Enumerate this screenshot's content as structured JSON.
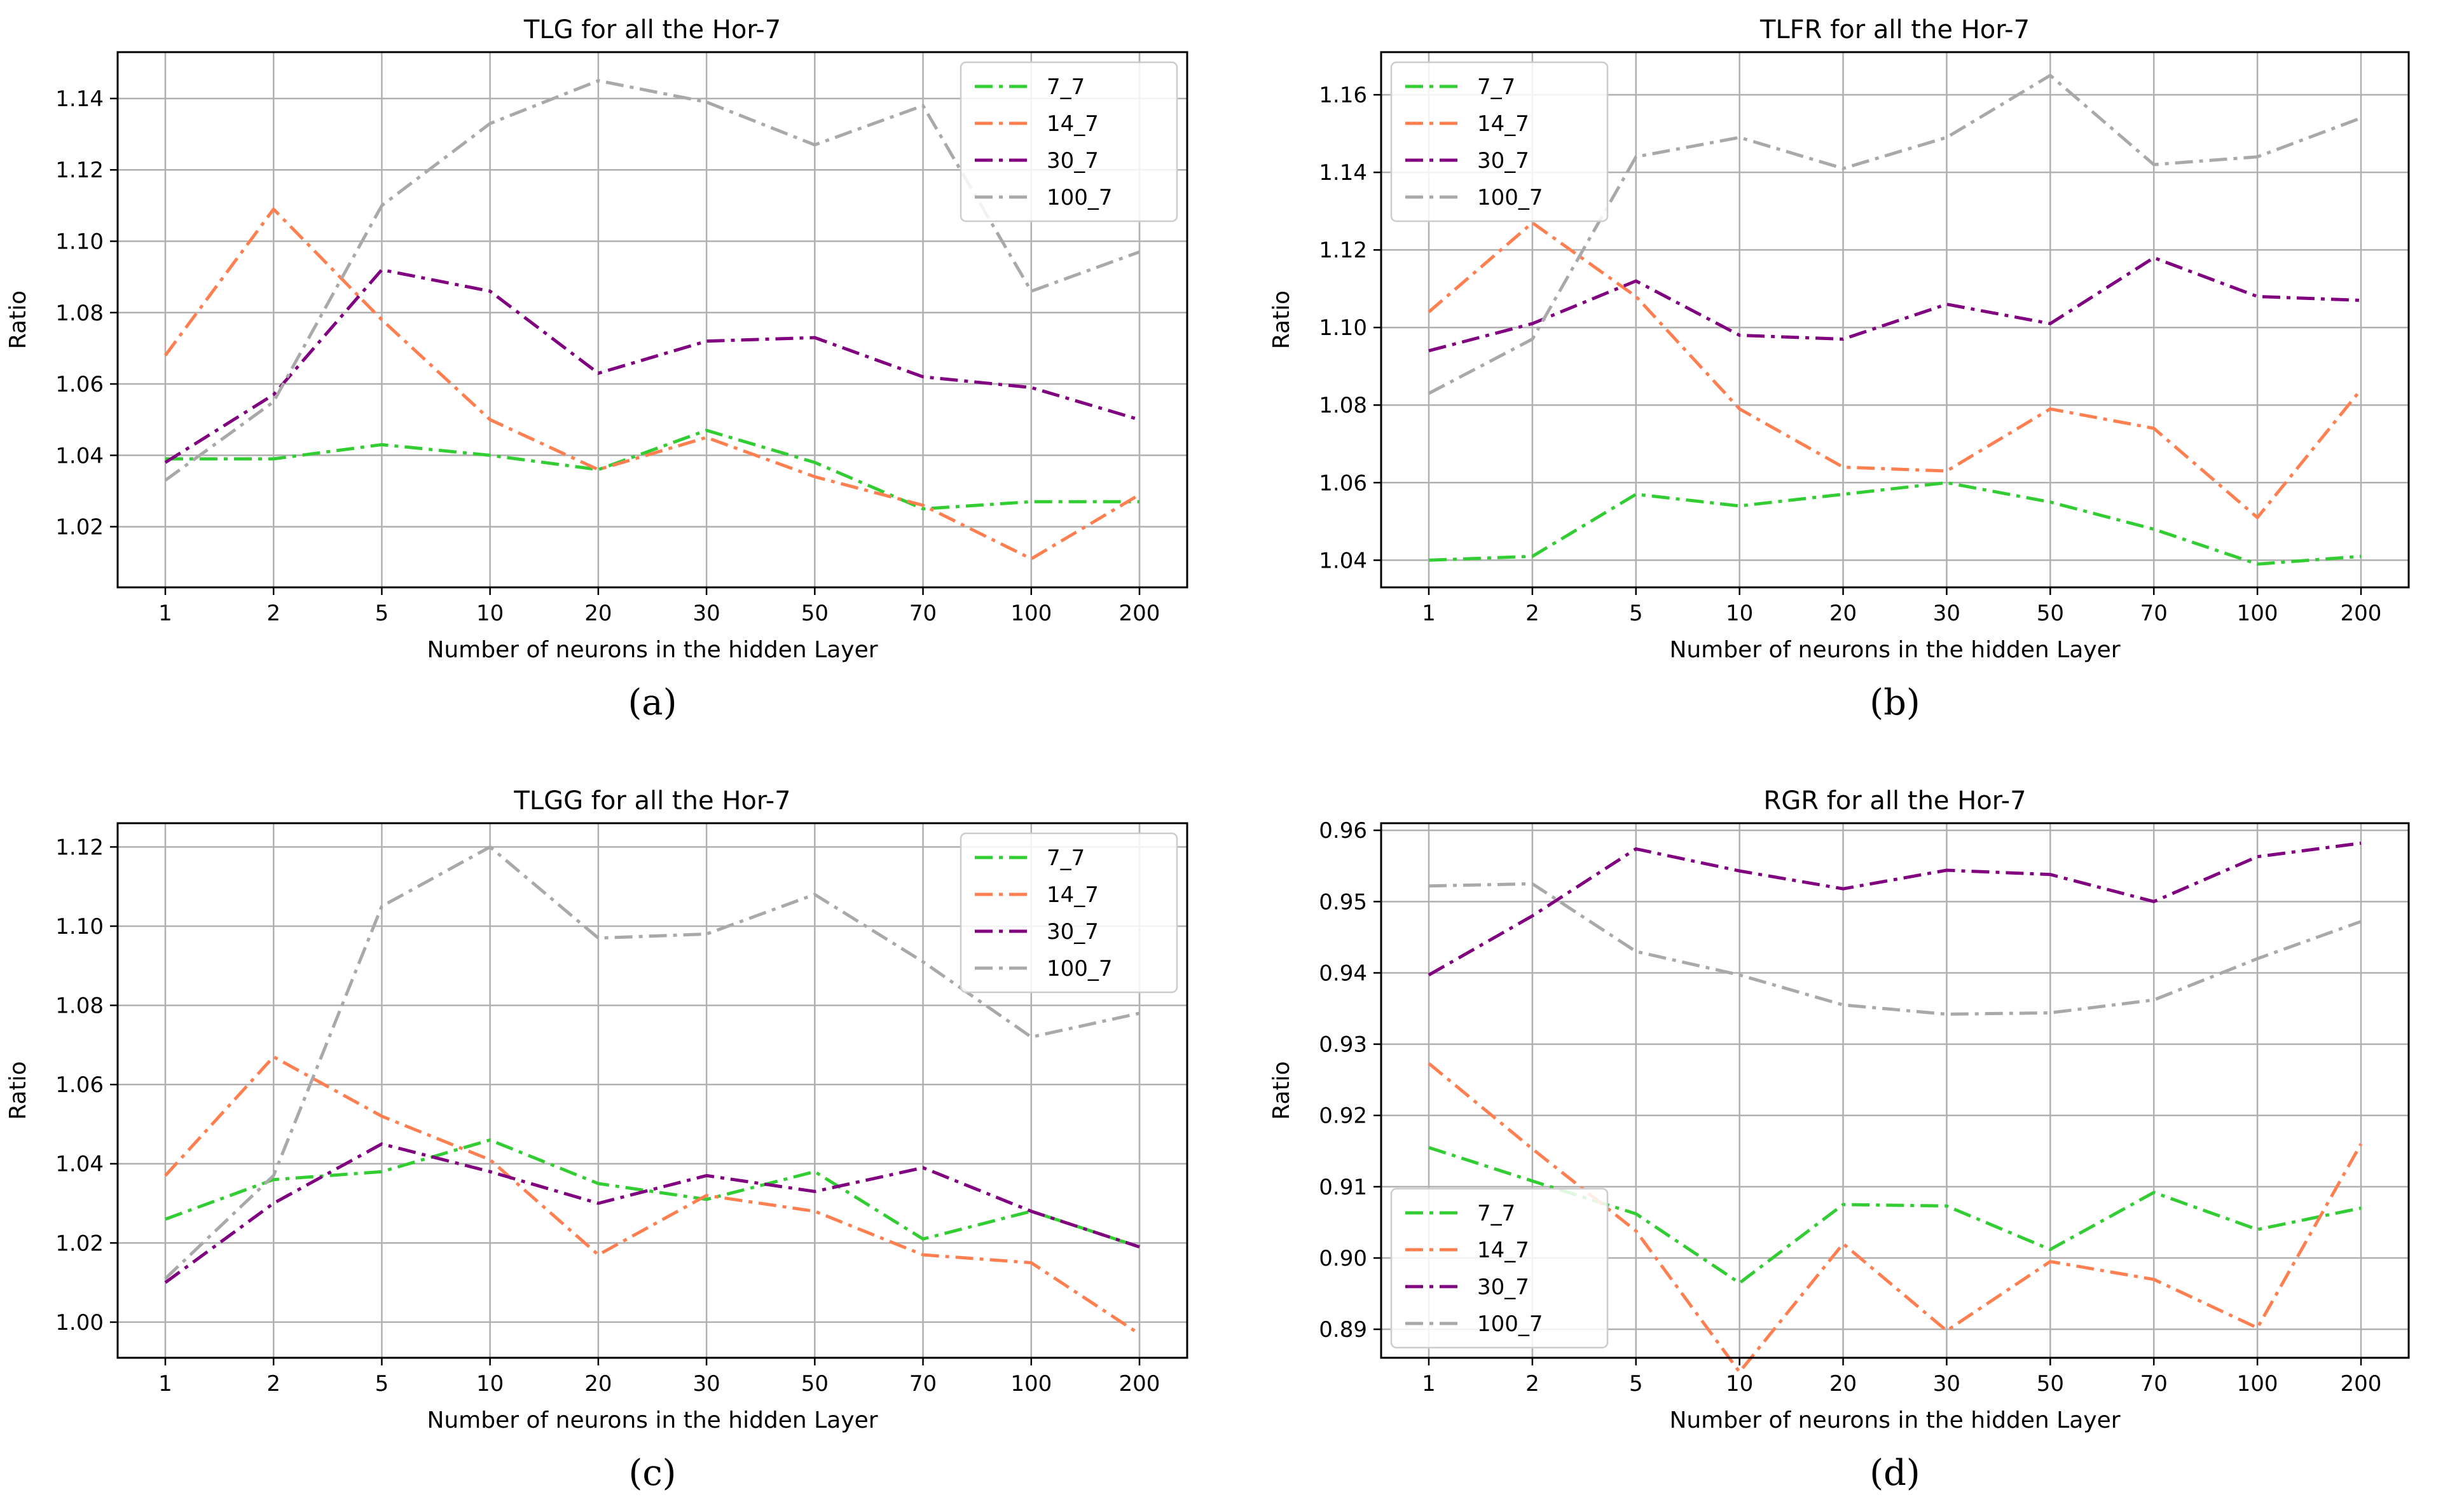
{
  "chart_data": [
    {
      "type": "line",
      "title": "TLG for all the Hor-7",
      "caption": "(a)",
      "xlabel": "Number of neurons in the hidden Layer",
      "ylabel": "Ratio",
      "categories": [
        "1",
        "2",
        "5",
        "10",
        "20",
        "30",
        "50",
        "70",
        "100",
        "200"
      ],
      "ylim": [
        1.003,
        1.153
      ],
      "yticks": [
        "1.02",
        "1.04",
        "1.06",
        "1.08",
        "1.10",
        "1.12",
        "1.14"
      ],
      "legend_position": "top-right",
      "grid": true,
      "series": [
        {
          "name": "7_7",
          "color": "#32cd32",
          "values": [
            1.039,
            1.039,
            1.043,
            1.04,
            1.036,
            1.047,
            1.038,
            1.025,
            1.027,
            1.027
          ]
        },
        {
          "name": "14_7",
          "color": "#ff7f50",
          "values": [
            1.068,
            1.109,
            1.078,
            1.05,
            1.036,
            1.045,
            1.034,
            1.026,
            1.011,
            1.029
          ]
        },
        {
          "name": "30_7",
          "color": "#800080",
          "values": [
            1.038,
            1.057,
            1.092,
            1.086,
            1.063,
            1.072,
            1.073,
            1.062,
            1.059,
            1.05
          ]
        },
        {
          "name": "100_7",
          "color": "#a9a9a9",
          "values": [
            1.033,
            1.055,
            1.11,
            1.133,
            1.145,
            1.139,
            1.127,
            1.138,
            1.086,
            1.097
          ]
        }
      ]
    },
    {
      "type": "line",
      "title": "TLFR for all the Hor-7",
      "caption": "(b)",
      "xlabel": "Number of neurons in the hidden Layer",
      "ylabel": "Ratio",
      "categories": [
        "1",
        "2",
        "5",
        "10",
        "20",
        "30",
        "50",
        "70",
        "100",
        "200"
      ],
      "ylim": [
        1.033,
        1.171
      ],
      "yticks": [
        "1.04",
        "1.06",
        "1.08",
        "1.10",
        "1.12",
        "1.14",
        "1.16"
      ],
      "legend_position": "top-left",
      "grid": true,
      "series": [
        {
          "name": "7_7",
          "color": "#32cd32",
          "values": [
            1.04,
            1.041,
            1.057,
            1.054,
            1.057,
            1.06,
            1.055,
            1.048,
            1.039,
            1.041
          ]
        },
        {
          "name": "14_7",
          "color": "#ff7f50",
          "values": [
            1.104,
            1.127,
            1.108,
            1.079,
            1.064,
            1.063,
            1.079,
            1.074,
            1.051,
            1.084
          ]
        },
        {
          "name": "30_7",
          "color": "#800080",
          "values": [
            1.094,
            1.101,
            1.112,
            1.098,
            1.097,
            1.106,
            1.101,
            1.118,
            1.108,
            1.107
          ]
        },
        {
          "name": "100_7",
          "color": "#a9a9a9",
          "values": [
            1.083,
            1.097,
            1.144,
            1.149,
            1.141,
            1.149,
            1.165,
            1.142,
            1.144,
            1.154
          ]
        }
      ]
    },
    {
      "type": "line",
      "title": "TLGG for all the Hor-7",
      "caption": "(c)",
      "xlabel": "Number of neurons in the hidden Layer",
      "ylabel": "Ratio",
      "categories": [
        "1",
        "2",
        "5",
        "10",
        "20",
        "30",
        "50",
        "70",
        "100",
        "200"
      ],
      "ylim": [
        0.991,
        1.126
      ],
      "yticks": [
        "1.00",
        "1.02",
        "1.04",
        "1.06",
        "1.08",
        "1.10",
        "1.12"
      ],
      "legend_position": "top-right",
      "grid": true,
      "series": [
        {
          "name": "7_7",
          "color": "#32cd32",
          "values": [
            1.026,
            1.036,
            1.038,
            1.046,
            1.035,
            1.031,
            1.038,
            1.021,
            1.028,
            1.019
          ]
        },
        {
          "name": "14_7",
          "color": "#ff7f50",
          "values": [
            1.037,
            1.067,
            1.052,
            1.041,
            1.017,
            1.032,
            1.028,
            1.017,
            1.015,
            0.997
          ]
        },
        {
          "name": "30_7",
          "color": "#800080",
          "values": [
            1.01,
            1.03,
            1.045,
            1.038,
            1.03,
            1.037,
            1.033,
            1.039,
            1.028,
            1.019
          ]
        },
        {
          "name": "100_7",
          "color": "#a9a9a9",
          "values": [
            1.011,
            1.037,
            1.105,
            1.12,
            1.097,
            1.098,
            1.108,
            1.091,
            1.072,
            1.078
          ]
        }
      ]
    },
    {
      "type": "line",
      "title": "RGR for all the Hor-7",
      "caption": "(d)",
      "xlabel": "Number of neurons in the hidden Layer",
      "ylabel": "Ratio",
      "categories": [
        "1",
        "2",
        "5",
        "10",
        "20",
        "30",
        "50",
        "70",
        "100",
        "200"
      ],
      "ylim": [
        0.886,
        0.961
      ],
      "yticks": [
        "0.89",
        "0.90",
        "0.91",
        "0.92",
        "0.93",
        "0.94",
        "0.95",
        "0.96"
      ],
      "legend_position": "bottom-left",
      "grid": true,
      "series": [
        {
          "name": "7_7",
          "color": "#32cd32",
          "values": [
            0.9155,
            0.9108,
            0.9062,
            0.8965,
            0.9075,
            0.9073,
            0.9012,
            0.9092,
            0.904,
            0.907
          ]
        },
        {
          "name": "14_7",
          "color": "#ff7f50",
          "values": [
            0.9273,
            0.9153,
            0.9038,
            0.884,
            0.902,
            0.8898,
            0.8995,
            0.897,
            0.8902,
            0.916
          ]
        },
        {
          "name": "30_7",
          "color": "#800080",
          "values": [
            0.9397,
            0.948,
            0.9574,
            0.9543,
            0.9518,
            0.9544,
            0.9538,
            0.95,
            0.9563,
            0.9582
          ]
        },
        {
          "name": "100_7",
          "color": "#a9a9a9",
          "values": [
            0.9522,
            0.9525,
            0.943,
            0.9397,
            0.9355,
            0.9342,
            0.9344,
            0.9362,
            0.942,
            0.9472
          ]
        }
      ]
    }
  ]
}
